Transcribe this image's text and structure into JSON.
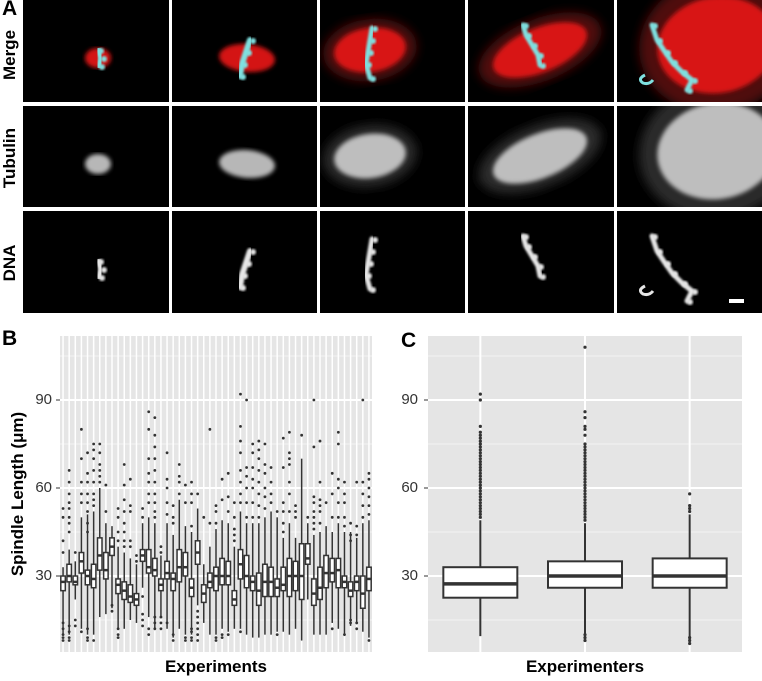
{
  "panel_a": {
    "label": "A",
    "row_labels": [
      "Merge",
      "Tubulin",
      "DNA"
    ],
    "columns": 5,
    "colors": {
      "tubulin": "#e01818",
      "dna": "#7fe0e0",
      "background": "#000000"
    }
  },
  "chart_data": [
    {
      "panel_label": "B",
      "type": "box",
      "xlabel": "Experiments",
      "ylabel": "Spindle Length (μm)",
      "yticks": [
        30,
        60,
        90
      ],
      "ylim": [
        4,
        112
      ],
      "grid": true,
      "background": "#e5e5e5",
      "boxes": [
        [
          10,
          25,
          28,
          30,
          33,
          [
            8,
            9,
            10,
            12,
            14,
            38,
            42,
            50,
            53
          ]
        ],
        [
          10,
          28,
          30,
          34,
          39,
          [
            8,
            9,
            11,
            13,
            45,
            48,
            50,
            53,
            55,
            58,
            62,
            66
          ]
        ],
        [
          22,
          27,
          28,
          30,
          35,
          [
            13,
            15,
            38
          ]
        ],
        [
          12,
          31,
          35,
          38,
          50,
          [
            11,
            55,
            58,
            62,
            70,
            80
          ]
        ],
        [
          10,
          27,
          30,
          32,
          51,
          [
            8,
            9,
            12,
            45,
            48,
            52,
            55,
            58,
            62,
            65,
            72
          ]
        ],
        [
          10,
          26,
          29,
          34,
          52,
          [
            8,
            54,
            56,
            58,
            62,
            66,
            70,
            73,
            75
          ]
        ],
        [
          16,
          32,
          37,
          43,
          60,
          [
            62,
            64,
            66,
            68,
            72,
            75
          ]
        ],
        [
          17,
          29,
          32,
          38,
          48,
          [
            52,
            61
          ]
        ],
        [
          19,
          37,
          40,
          43,
          47,
          [
            18,
            20
          ]
        ],
        [
          12,
          24,
          27,
          29,
          40,
          [
            9,
            10,
            12,
            42,
            45,
            50,
            53
          ]
        ],
        [
          12,
          22,
          25,
          28,
          38,
          [
            40,
            42,
            45,
            48,
            52,
            56,
            61,
            68
          ]
        ],
        [
          15,
          21,
          23,
          27,
          36,
          [
            40,
            42,
            52,
            54,
            63
          ]
        ],
        [
          14,
          20,
          22,
          24,
          34,
          [
            35,
            37
          ]
        ],
        [
          26,
          35,
          37,
          39,
          48,
          [
            13,
            15,
            17,
            23,
            50,
            53
          ]
        ],
        [
          16,
          31,
          33,
          39,
          50,
          [
            10,
            12,
            55,
            58,
            62,
            65,
            70,
            80,
            86
          ]
        ],
        [
          12,
          30,
          32,
          36,
          48,
          [
            12,
            14,
            16,
            50,
            52,
            55,
            58,
            62,
            66,
            70,
            74,
            78,
            84
          ]
        ],
        [
          16,
          25,
          27,
          29,
          37,
          [
            12,
            14,
            16,
            38,
            40
          ]
        ],
        [
          12,
          29,
          31,
          35,
          48,
          [
            14,
            51,
            55,
            60,
            63,
            72
          ]
        ],
        [
          9,
          25,
          29,
          31,
          44,
          [
            8,
            10,
            48,
            50,
            54
          ]
        ],
        [
          12,
          28,
          33,
          39,
          56,
          [
            58,
            62,
            64,
            68
          ]
        ],
        [
          10,
          30,
          33,
          38,
          47,
          [
            8,
            9,
            55,
            61
          ]
        ],
        [
          10,
          23,
          26,
          29,
          45,
          [
            8,
            9,
            11,
            12,
            47,
            55,
            58,
            62
          ]
        ],
        [
          20,
          34,
          38,
          42,
          53,
          [
            8,
            10,
            12,
            14,
            16,
            18,
            58
          ]
        ],
        [
          14,
          21,
          24,
          27,
          34,
          [
            50
          ]
        ],
        [
          10,
          26,
          28,
          31,
          40,
          [
            48,
            80
          ]
        ],
        [
          10,
          25,
          30,
          33,
          46,
          [
            8,
            9,
            48,
            52,
            54
          ]
        ],
        [
          12,
          27,
          30,
          36,
          49,
          [
            9,
            10,
            56,
            63
          ]
        ],
        [
          11,
          27,
          30,
          35,
          48,
          [
            10,
            52,
            57,
            65
          ]
        ],
        [
          12,
          20,
          22,
          25,
          40,
          [
            42,
            44,
            46,
            50,
            55
          ]
        ],
        [
          12,
          29,
          34,
          39,
          52,
          [
            11,
            55,
            58,
            62,
            66,
            72,
            76,
            81,
            92
          ]
        ],
        [
          10,
          26,
          30,
          37,
          48,
          [
            50,
            55,
            60,
            64,
            67,
            90
          ]
        ],
        [
          9,
          25,
          28,
          30,
          48,
          [
            50,
            55,
            60,
            63,
            67,
            72,
            75
          ]
        ],
        [
          9,
          20,
          25,
          31,
          48,
          [
            50,
            54,
            58,
            62,
            66,
            70,
            73,
            76
          ]
        ],
        [
          10,
          23,
          28,
          34,
          50,
          [
            53,
            57,
            60,
            65,
            68,
            75
          ]
        ],
        [
          10,
          23,
          28,
          33,
          52,
          [
            55,
            58,
            62,
            67
          ]
        ],
        [
          11,
          23,
          26,
          29,
          50,
          [
            10,
            52
          ]
        ],
        [
          11,
          25,
          27,
          33,
          43,
          [
            45,
            48,
            52,
            55,
            67,
            77
          ]
        ],
        [
          10,
          23,
          30,
          36,
          48,
          [
            52,
            58,
            62,
            68,
            70,
            72,
            79
          ]
        ],
        [
          12,
          25,
          30,
          35,
          43,
          [
            50,
            52,
            54
          ]
        ],
        [
          8,
          22,
          30,
          41,
          70,
          [
            78
          ]
        ],
        [
          22,
          34,
          36,
          41,
          48,
          [
            50
          ]
        ],
        [
          10,
          20,
          24,
          29,
          44,
          [
            46,
            48,
            50,
            52,
            55,
            57,
            74,
            90
          ]
        ],
        [
          10,
          22,
          26,
          33,
          45,
          [
            48,
            52,
            54,
            56,
            62,
            76
          ]
        ],
        [
          10,
          26,
          31,
          37,
          47,
          [
            55
          ]
        ],
        [
          14,
          28,
          31,
          36,
          45,
          [
            12,
            50,
            58,
            65
          ]
        ],
        [
          12,
          26,
          32,
          36,
          48,
          [
            50,
            55,
            60,
            63,
            75,
            79
          ]
        ],
        [
          10,
          26,
          28,
          30,
          45,
          [
            10,
            47,
            50,
            55,
            58,
            62
          ]
        ],
        [
          13,
          23,
          25,
          28,
          45,
          [
            14,
            15,
            42,
            44,
            48
          ]
        ],
        [
          14,
          25,
          28,
          30,
          43,
          [
            12,
            14,
            44,
            47,
            62
          ]
        ],
        [
          11,
          19,
          24,
          30,
          48,
          [
            50,
            54,
            58,
            62,
            90
          ]
        ],
        [
          9,
          25,
          29,
          33,
          49,
          [
            8,
            51,
            54,
            57,
            60,
            63,
            65
          ]
        ]
      ]
    },
    {
      "panel_label": "C",
      "type": "box",
      "xlabel": "Experimenters",
      "ylabel": "",
      "yticks": [
        30,
        60,
        90
      ],
      "ylim": [
        4,
        112
      ],
      "grid": true,
      "background": "#e5e5e5",
      "boxes": [
        [
          9.5,
          22.6,
          27.3,
          33,
          49,
          [
            50,
            51,
            52,
            53,
            54,
            55,
            56,
            57,
            58,
            59,
            60,
            61,
            62,
            63,
            64,
            65,
            66,
            67,
            68,
            69,
            70,
            71,
            72,
            73,
            74,
            75,
            76,
            77,
            78,
            79,
            81,
            90,
            92
          ]
        ],
        [
          8.5,
          26,
          30,
          35,
          48,
          [
            8,
            9,
            10,
            49,
            50,
            51,
            52,
            53,
            54,
            55,
            56,
            57,
            58,
            59,
            60,
            61,
            62,
            63,
            64,
            65,
            66,
            67,
            68,
            69,
            70,
            71,
            72,
            73,
            74,
            75,
            78,
            80,
            81,
            84,
            86,
            108
          ]
        ],
        [
          7.5,
          26,
          30,
          36,
          51,
          [
            7,
            8,
            9,
            52,
            53,
            54,
            58
          ]
        ]
      ]
    }
  ]
}
